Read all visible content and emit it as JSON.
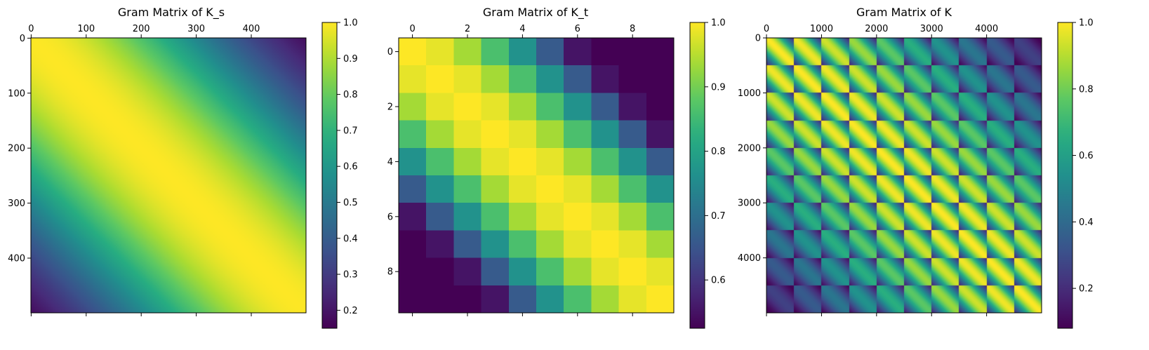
{
  "chart_data": [
    {
      "type": "heatmap",
      "title": "Gram Matrix of K_s",
      "n": 500,
      "matrix_function": "exp(-0.5*((i-j)/270)^2)",
      "x_ticks": [
        0,
        100,
        200,
        300,
        400
      ],
      "x_tick_labels": [
        "0",
        "100",
        "200",
        "300",
        "400"
      ],
      "y_ticks": [
        0,
        100,
        200,
        300,
        400
      ],
      "y_tick_labels": [
        "0",
        "100",
        "200",
        "300",
        "400"
      ],
      "x_axis_position": "top",
      "colormap": "viridis",
      "colorbar": {
        "vmin": 0.15,
        "vmax": 1.0,
        "ticks": [
          0.2,
          0.3,
          0.4,
          0.5,
          0.6,
          0.7,
          0.8,
          0.9,
          1.0
        ],
        "tick_labels": [
          "0.2",
          "0.3",
          "0.4",
          "0.5",
          "0.6",
          "0.7",
          "0.8",
          "0.9",
          "1.0"
        ]
      }
    },
    {
      "type": "heatmap",
      "title": "Gram Matrix of K_t",
      "n": 10,
      "matrix_function": "exp(-0.5*((i-j)/5.5)^2)",
      "x_ticks": [
        0,
        2,
        4,
        6,
        8
      ],
      "x_tick_labels": [
        "0",
        "2",
        "4",
        "6",
        "8"
      ],
      "y_ticks": [
        0,
        2,
        4,
        6,
        8
      ],
      "y_tick_labels": [
        "0",
        "2",
        "4",
        "6",
        "8"
      ],
      "x_axis_position": "top",
      "colormap": "viridis",
      "colorbar": {
        "vmin": 0.525,
        "vmax": 1.0,
        "ticks": [
          0.6,
          0.7,
          0.8,
          0.9,
          1.0
        ],
        "tick_labels": [
          "0.6",
          "0.7",
          "0.8",
          "0.9",
          "1.0"
        ]
      }
    },
    {
      "type": "heatmap",
      "title": "Gram Matrix of K",
      "n": 5000,
      "matrix_function": "K_s (x) K_t, Kronecker product of 500x500 and 10x10 blocks",
      "x_ticks": [
        0,
        1000,
        2000,
        3000,
        4000
      ],
      "x_tick_labels": [
        "0",
        "1000",
        "2000",
        "3000",
        "4000"
      ],
      "y_ticks": [
        0,
        1000,
        2000,
        3000,
        4000
      ],
      "y_tick_labels": [
        "0",
        "1000",
        "2000",
        "3000",
        "4000"
      ],
      "x_axis_position": "top",
      "colormap": "viridis",
      "colorbar": {
        "vmin": 0.08,
        "vmax": 1.0,
        "ticks": [
          0.2,
          0.4,
          0.6,
          0.8,
          1.0
        ],
        "tick_labels": [
          "0.2",
          "0.4",
          "0.6",
          "0.8",
          "1.0"
        ]
      }
    }
  ]
}
